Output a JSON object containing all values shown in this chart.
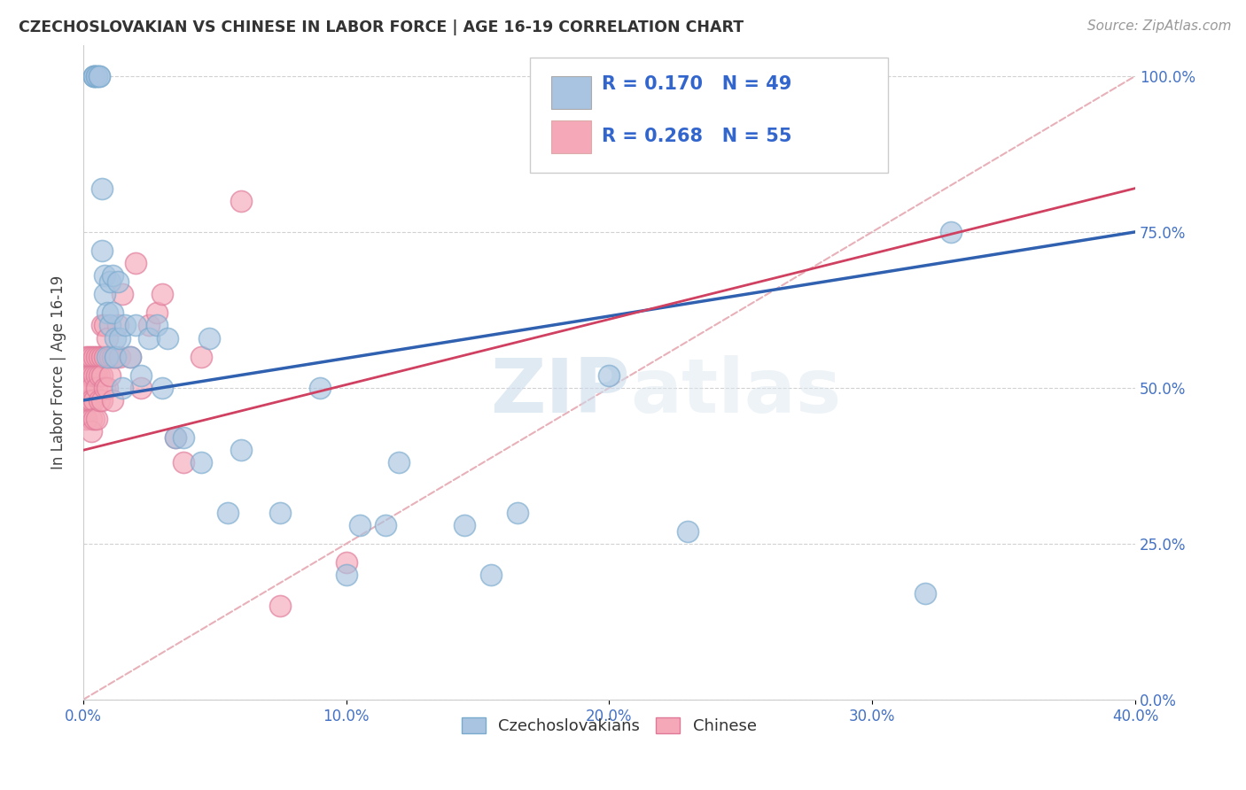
{
  "title": "CZECHOSLOVAKIAN VS CHINESE IN LABOR FORCE | AGE 16-19 CORRELATION CHART",
  "source": "Source: ZipAtlas.com",
  "ylabel": "In Labor Force | Age 16-19",
  "xlim": [
    0.0,
    0.4
  ],
  "ylim": [
    0.0,
    1.05
  ],
  "ytick_labels": [
    "0.0%",
    "25.0%",
    "50.0%",
    "75.0%",
    "100.0%"
  ],
  "ytick_values": [
    0.0,
    0.25,
    0.5,
    0.75,
    1.0
  ],
  "xtick_labels": [
    "0.0%",
    "10.0%",
    "20.0%",
    "30.0%",
    "40.0%"
  ],
  "xtick_values": [
    0.0,
    0.1,
    0.2,
    0.3,
    0.4
  ],
  "R_czech": 0.17,
  "N_czech": 49,
  "R_chinese": 0.268,
  "N_chinese": 55,
  "color_czech": "#a8c4e0",
  "color_czech_edge": "#7aaace",
  "color_chinese": "#f4a8b8",
  "color_chinese_edge": "#e07898",
  "line_color_czech": "#3060b0",
  "line_color_chinese": "#d04060",
  "diagonal_color": "#e8b0b8",
  "watermark_zip": "ZIP",
  "watermark_atlas": "atlas",
  "background_color": "#ffffff",
  "czech_x": [
    0.004,
    0.004,
    0.004,
    0.005,
    0.005,
    0.006,
    0.006,
    0.007,
    0.007,
    0.008,
    0.008,
    0.009,
    0.009,
    0.01,
    0.01,
    0.011,
    0.011,
    0.012,
    0.012,
    0.013,
    0.014,
    0.015,
    0.016,
    0.018,
    0.02,
    0.022,
    0.025,
    0.028,
    0.03,
    0.032,
    0.035,
    0.038,
    0.045,
    0.048,
    0.055,
    0.06,
    0.075,
    0.09,
    0.1,
    0.105,
    0.115,
    0.12,
    0.145,
    0.155,
    0.165,
    0.2,
    0.23,
    0.32,
    0.33
  ],
  "czech_y": [
    1.0,
    1.0,
    1.0,
    1.0,
    1.0,
    1.0,
    1.0,
    0.82,
    0.72,
    0.68,
    0.65,
    0.62,
    0.55,
    0.67,
    0.6,
    0.68,
    0.62,
    0.58,
    0.55,
    0.67,
    0.58,
    0.5,
    0.6,
    0.55,
    0.6,
    0.52,
    0.58,
    0.6,
    0.5,
    0.58,
    0.42,
    0.42,
    0.38,
    0.58,
    0.3,
    0.4,
    0.3,
    0.5,
    0.2,
    0.28,
    0.28,
    0.38,
    0.28,
    0.2,
    0.3,
    0.52,
    0.27,
    0.17,
    0.75
  ],
  "chinese_x": [
    0.001,
    0.001,
    0.001,
    0.001,
    0.001,
    0.002,
    0.002,
    0.002,
    0.002,
    0.003,
    0.003,
    0.003,
    0.003,
    0.003,
    0.003,
    0.004,
    0.004,
    0.004,
    0.004,
    0.005,
    0.005,
    0.005,
    0.005,
    0.006,
    0.006,
    0.006,
    0.007,
    0.007,
    0.007,
    0.007,
    0.008,
    0.008,
    0.008,
    0.009,
    0.009,
    0.01,
    0.01,
    0.011,
    0.011,
    0.012,
    0.013,
    0.014,
    0.015,
    0.018,
    0.02,
    0.022,
    0.025,
    0.028,
    0.03,
    0.035,
    0.038,
    0.045,
    0.06,
    0.075,
    0.1
  ],
  "chinese_y": [
    0.55,
    0.52,
    0.5,
    0.48,
    0.45,
    0.55,
    0.52,
    0.5,
    0.48,
    0.55,
    0.52,
    0.5,
    0.48,
    0.45,
    0.43,
    0.55,
    0.52,
    0.48,
    0.45,
    0.55,
    0.52,
    0.5,
    0.45,
    0.55,
    0.52,
    0.48,
    0.6,
    0.55,
    0.52,
    0.48,
    0.6,
    0.55,
    0.5,
    0.58,
    0.5,
    0.55,
    0.52,
    0.55,
    0.48,
    0.55,
    0.6,
    0.55,
    0.65,
    0.55,
    0.7,
    0.5,
    0.6,
    0.62,
    0.65,
    0.42,
    0.38,
    0.55,
    0.8,
    0.15,
    0.22
  ],
  "czech_trend_x": [
    0.0,
    0.4
  ],
  "czech_trend_y": [
    0.48,
    0.75
  ],
  "chinese_trend_x": [
    0.0,
    0.4
  ],
  "chinese_trend_y": [
    0.4,
    0.82
  ]
}
